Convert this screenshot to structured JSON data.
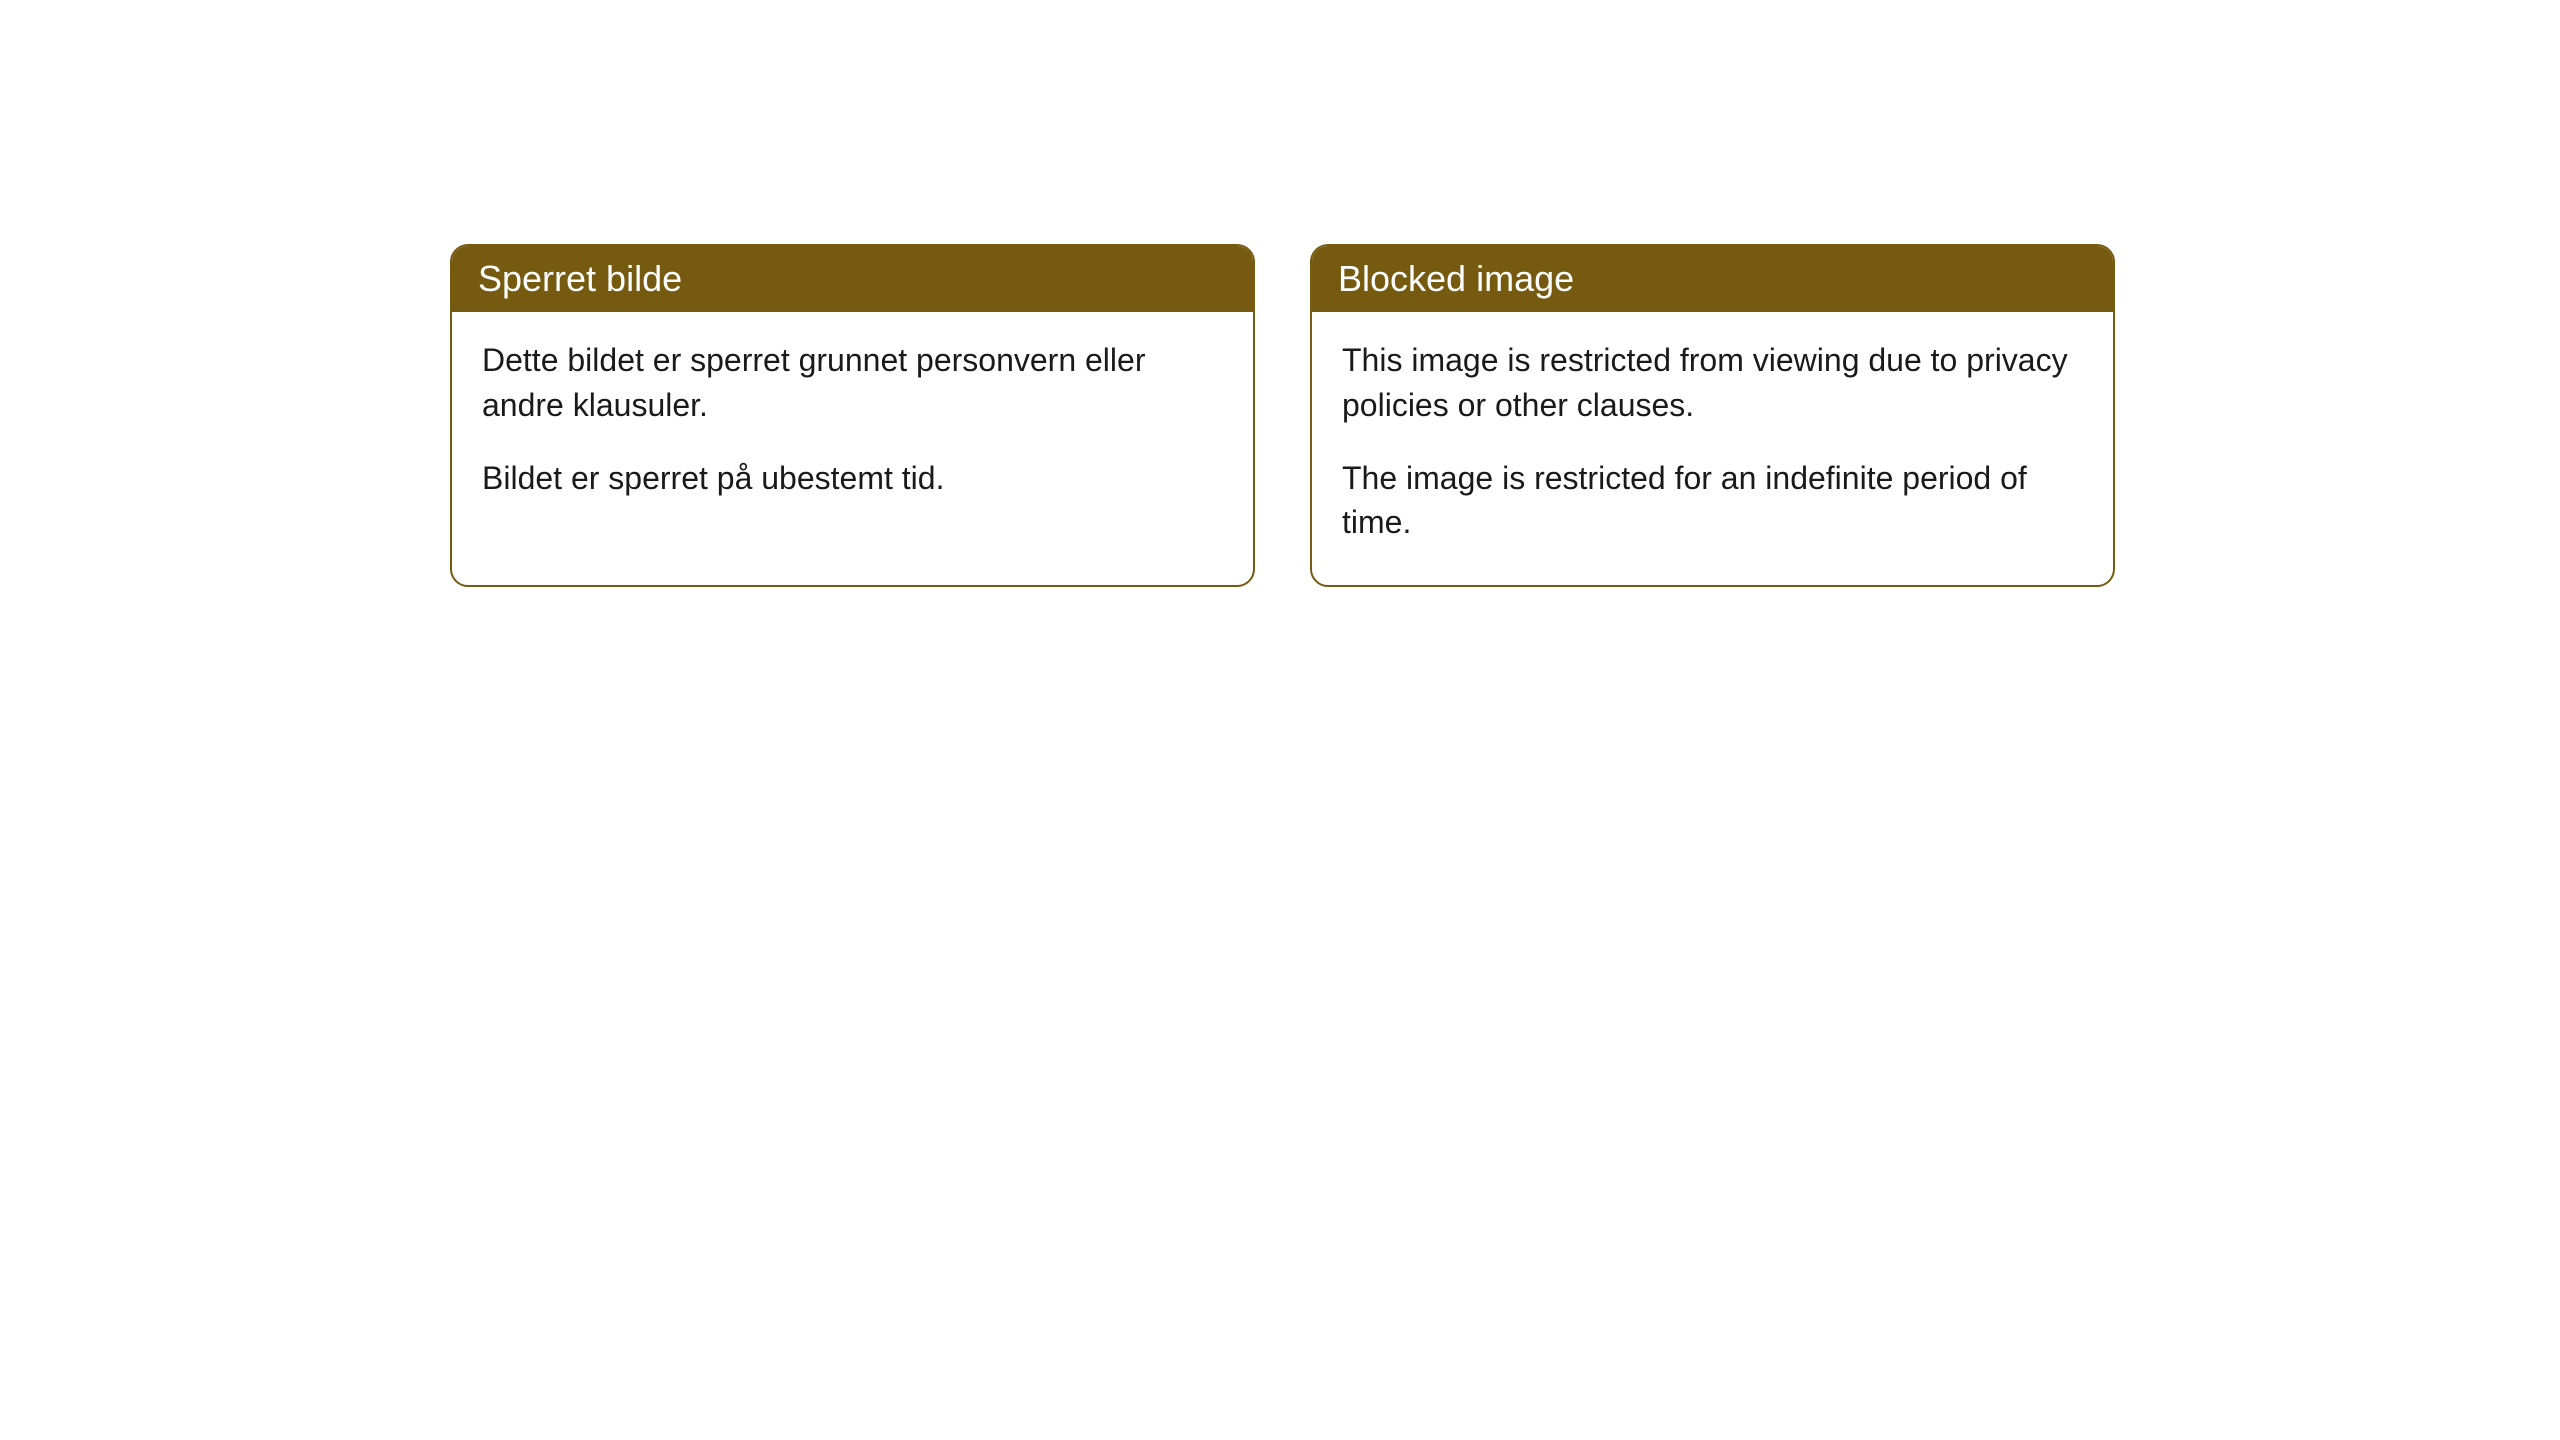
{
  "cards": {
    "norwegian": {
      "title": "Sperret bilde",
      "paragraph1": "Dette bildet er sperret grunnet personvern eller andre klausuler.",
      "paragraph2": "Bildet er sperret på ubestemt tid."
    },
    "english": {
      "title": "Blocked image",
      "paragraph1": "This image is restricted from viewing due to privacy policies or other clauses.",
      "paragraph2": "The image is restricted for an indefinite period of time."
    }
  },
  "style": {
    "header_background": "#755a10",
    "header_text_color": "#ffffff",
    "border_color": "#755a10",
    "body_background": "#ffffff",
    "body_text_color": "#1a1a1a",
    "border_radius": 18,
    "title_fontsize": 36,
    "body_fontsize": 32
  }
}
